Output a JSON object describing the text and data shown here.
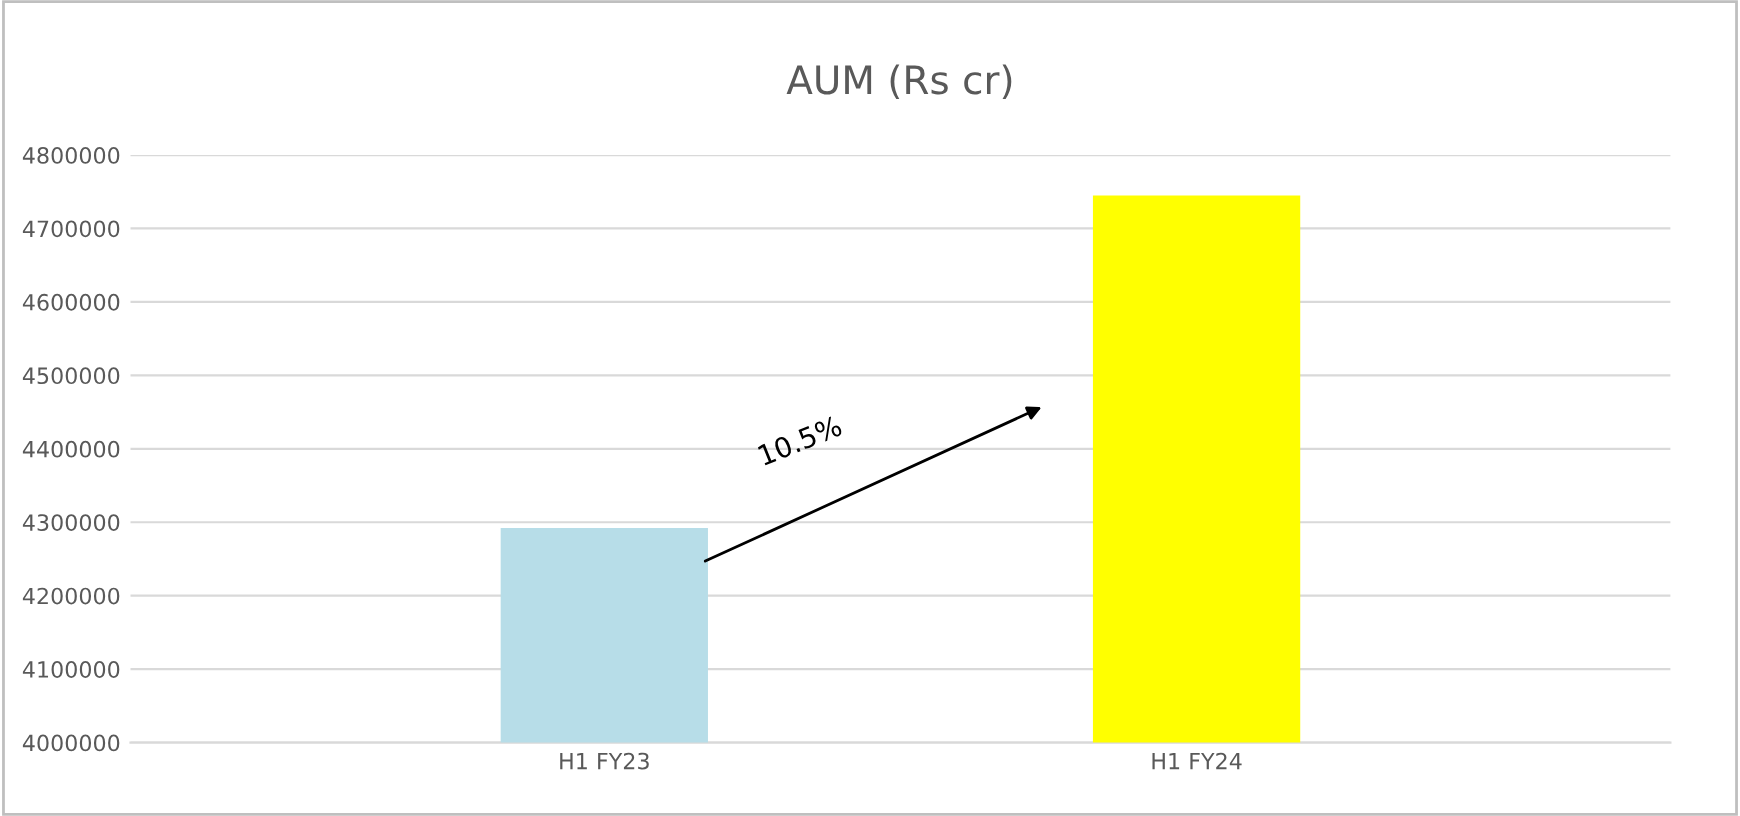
{
  "chart_data": {
    "type": "bar",
    "title": "AUM (Rs cr)",
    "categories": [
      "H1 FY23",
      "H1 FY24"
    ],
    "values": [
      4292000,
      4745000
    ],
    "colors": [
      "#b7dde8",
      "#ffff00"
    ],
    "ylim": [
      4000000,
      4800000
    ],
    "yticks": [
      4000000,
      4100000,
      4200000,
      4300000,
      4400000,
      4500000,
      4600000,
      4700000,
      4800000
    ],
    "grid": "y",
    "annotations": [
      "10.5%"
    ]
  }
}
